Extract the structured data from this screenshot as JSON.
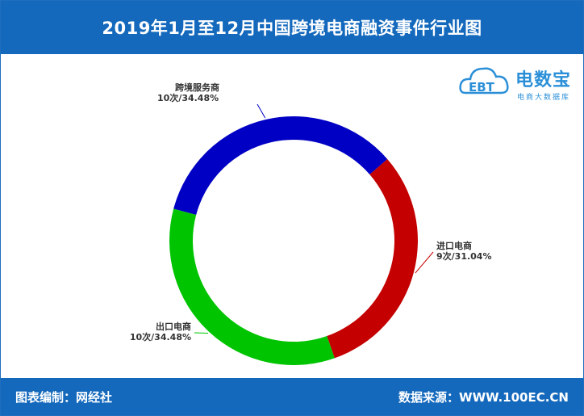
{
  "header": {
    "title": "2019年1月至12月中国跨境电商融资事件行业图"
  },
  "footer": {
    "left": "图表编制：网经社",
    "right": "数据来源：WWW.100EC.CN"
  },
  "logo": {
    "main": "电数宝",
    "badge": "EBT",
    "sub": "电商大数据库"
  },
  "colors": {
    "header": "#1469bd",
    "logo": "#2b8fd8"
  },
  "chart_data": {
    "type": "pie",
    "variant": "donut",
    "title": "2019年1月至12月中国跨境电商融资事件行业图",
    "series": [
      {
        "name": "跨境服务商",
        "value": 10,
        "percent": 34.48,
        "label_line1": "跨境服务商",
        "label_line2": "10次/34.48%",
        "color": "#0000c4"
      },
      {
        "name": "进口电商",
        "value": 9,
        "percent": 31.04,
        "label_line1": "进口电商",
        "label_line2": "9次/31.04%",
        "color": "#c40000"
      },
      {
        "name": "出口电商",
        "value": 10,
        "percent": 34.48,
        "label_line1": "出口电商",
        "label_line2": "10次/34.48%",
        "color": "#00c400"
      }
    ],
    "legend": "none"
  }
}
